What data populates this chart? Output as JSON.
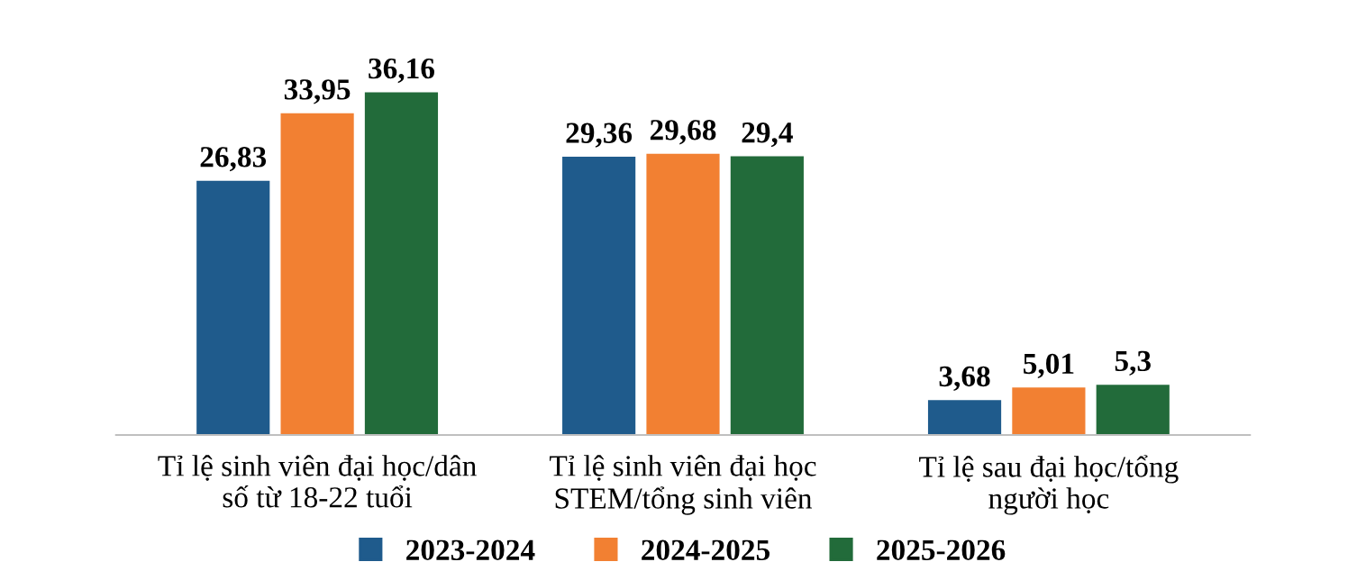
{
  "chart_data": {
    "type": "bar",
    "categories": [
      "Tỉ lệ sinh viên đại học/dân\nsố từ 18-22 tuổi",
      "Tỉ lệ sinh viên đại học\nSTEM/tổng sinh viên",
      "Tỉ lệ sau đại học/tổng\nngười học"
    ],
    "series": [
      {
        "name": "2023-2024",
        "color": "#1f5b8c",
        "values": [
          26.83,
          29.36,
          3.68
        ],
        "value_labels": [
          "26,83",
          "29,36",
          "3,68"
        ]
      },
      {
        "name": "2024-2025",
        "color": "#f28032",
        "values": [
          33.95,
          29.68,
          5.01
        ],
        "value_labels": [
          "33,95",
          "29,68",
          "5,01"
        ]
      },
      {
        "name": "2025-2026",
        "color": "#226b3a",
        "values": [
          36.16,
          29.4,
          5.3
        ],
        "value_labels": [
          "36,16",
          "29,4",
          "5,3"
        ]
      }
    ],
    "legend": "bottom",
    "grid": false,
    "tick_labels": "x"
  }
}
